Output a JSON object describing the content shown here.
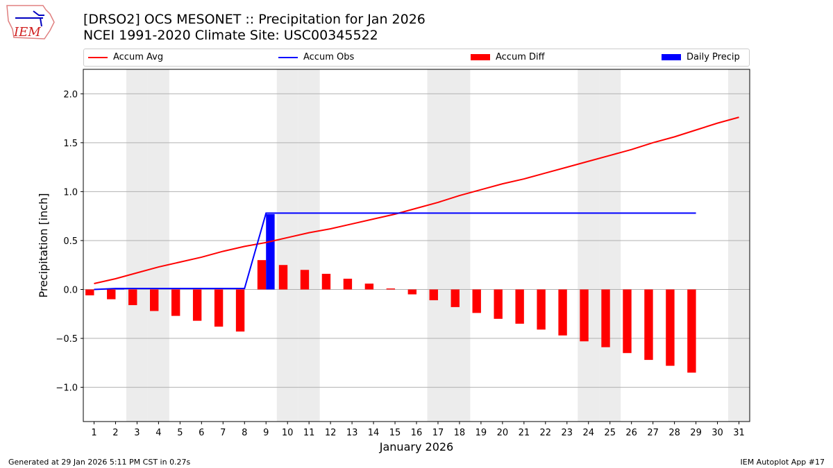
{
  "header": {
    "title_line1": "[DRSO2] OCS MESONET :: Precipitation for Jan 2026",
    "title_line2": "NCEI 1991-2020 Climate Site: USC00345522",
    "logo_text": "IEM"
  },
  "footer": {
    "left": "Generated at 29 Jan 2026 5:11 PM CST in 0.27s",
    "right": "IEM Autoplot App #17"
  },
  "chart_data": {
    "type": "bar+line",
    "xlabel": "January 2026",
    "ylabel": "Precipitation [inch]",
    "xlim": [
      0.5,
      31.5
    ],
    "ylim": [
      -1.35,
      2.25
    ],
    "x_ticks": [
      1,
      2,
      3,
      4,
      5,
      6,
      7,
      8,
      9,
      10,
      11,
      12,
      13,
      14,
      15,
      16,
      17,
      18,
      19,
      20,
      21,
      22,
      23,
      24,
      25,
      26,
      27,
      28,
      29,
      30,
      31
    ],
    "y_ticks": [
      -1.0,
      -0.5,
      0.0,
      0.5,
      1.0,
      1.5,
      2.0
    ],
    "y_tick_labels": [
      "−1.0",
      "−0.5",
      "0.0",
      "0.5",
      "1.0",
      "1.5",
      "2.0"
    ],
    "grid": "horizontal",
    "legend_position": "top",
    "weekend_shading_days": [
      3,
      4,
      10,
      11,
      17,
      18,
      24,
      25,
      31
    ],
    "days": [
      1,
      2,
      3,
      4,
      5,
      6,
      7,
      8,
      9,
      10,
      11,
      12,
      13,
      14,
      15,
      16,
      17,
      18,
      19,
      20,
      21,
      22,
      23,
      24,
      25,
      26,
      27,
      28,
      29,
      30,
      31
    ],
    "series": [
      {
        "name": "Accum Avg",
        "type": "line",
        "color": "#ff0000",
        "values": [
          0.06,
          0.11,
          0.17,
          0.23,
          0.28,
          0.33,
          0.39,
          0.44,
          0.48,
          0.53,
          0.58,
          0.62,
          0.67,
          0.72,
          0.77,
          0.83,
          0.89,
          0.96,
          1.02,
          1.08,
          1.13,
          1.19,
          1.25,
          1.31,
          1.37,
          1.43,
          1.5,
          1.56,
          1.63,
          1.7,
          1.76
        ]
      },
      {
        "name": "Accum Obs",
        "type": "line",
        "color": "#0000ff",
        "values": [
          0.0,
          0.01,
          0.01,
          0.01,
          0.01,
          0.01,
          0.01,
          0.01,
          0.78,
          0.78,
          0.78,
          0.78,
          0.78,
          0.78,
          0.78,
          0.78,
          0.78,
          0.78,
          0.78,
          0.78,
          0.78,
          0.78,
          0.78,
          0.78,
          0.78,
          0.78,
          0.78,
          0.78,
          0.78,
          null,
          null
        ]
      },
      {
        "name": "Accum Diff",
        "type": "bar",
        "color": "#ff0000",
        "values": [
          -0.06,
          -0.1,
          -0.16,
          -0.22,
          -0.27,
          -0.32,
          -0.38,
          -0.43,
          0.3,
          0.25,
          0.2,
          0.16,
          0.11,
          0.06,
          0.01,
          -0.05,
          -0.11,
          -0.18,
          -0.24,
          -0.3,
          -0.35,
          -0.41,
          -0.47,
          -0.53,
          -0.59,
          -0.65,
          -0.72,
          -0.78,
          -0.85,
          null,
          null
        ]
      },
      {
        "name": "Daily Precip",
        "type": "bar",
        "color": "#0000ff",
        "values": [
          0,
          0.01,
          0,
          0,
          0,
          0,
          0,
          0,
          0.77,
          0,
          0,
          0,
          0,
          0,
          0,
          0,
          0,
          0,
          0,
          0,
          0,
          0,
          0,
          0,
          0,
          0,
          0,
          0,
          0,
          null,
          null
        ]
      }
    ]
  }
}
